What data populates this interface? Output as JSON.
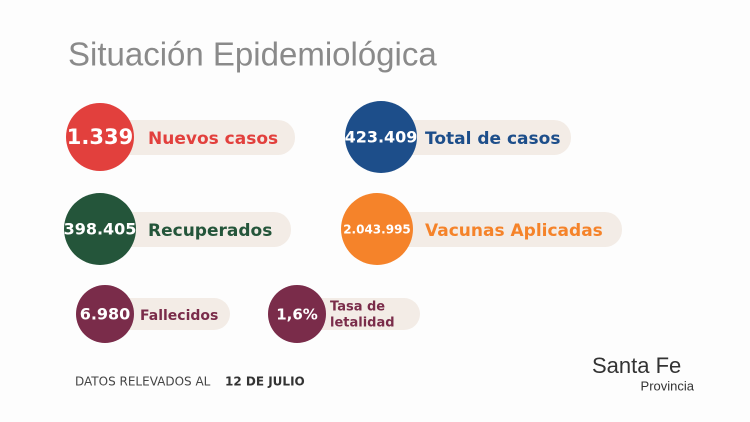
{
  "title": "Situación Epidemiológica",
  "stats": [
    {
      "value": "1.339",
      "label": [
        "Nuevos casos"
      ]
    },
    {
      "value": "423.409",
      "label": [
        "Total de casos"
      ]
    },
    {
      "value": "398.405",
      "label": [
        "Recuperados"
      ]
    },
    {
      "value": "2.043.995",
      "label": [
        "Vacunas Aplicadas"
      ]
    },
    {
      "value": "6.980",
      "label": [
        "Fallecidos"
      ]
    },
    {
      "value": "1,6%",
      "label": [
        "Tasa de",
        "letalidad"
      ]
    }
  ],
  "footer": {
    "text": "DATOS RELEVADOS AL",
    "date": "12 DE JULIO"
  },
  "logo": {
    "name": "Santa Fe",
    "subtitle": "Provincia"
  }
}
